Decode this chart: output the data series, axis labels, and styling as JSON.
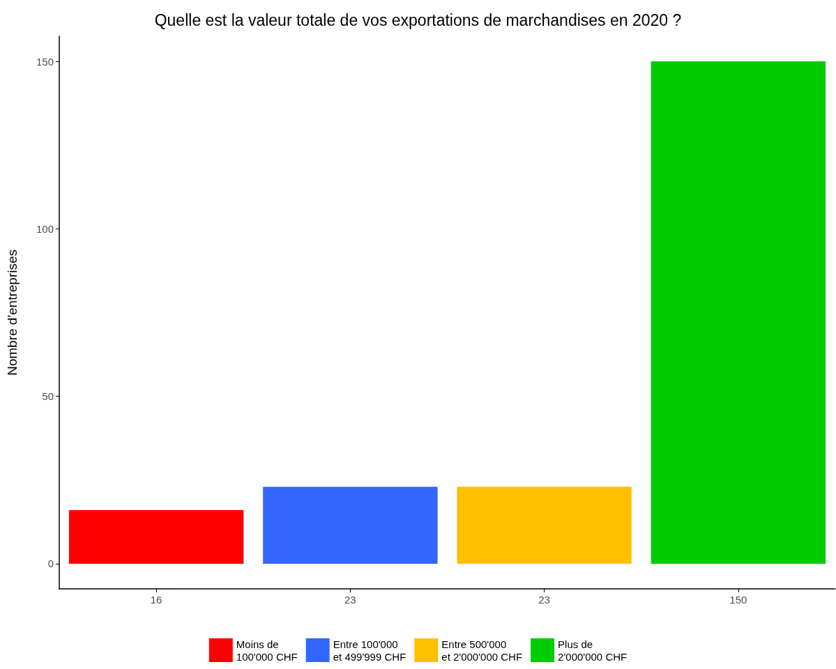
{
  "chart_data": {
    "type": "bar",
    "title": "Quelle est la valeur totale de vos exportations de marchandises en 2020 ?",
    "ylabel": "Nombre d'entreprises",
    "categories": [
      "16",
      "23",
      "23",
      "150"
    ],
    "series": [
      {
        "name": "Moins de\n100'000 CHF",
        "color": "#ff0000",
        "values": [
          16,
          null,
          null,
          null
        ]
      },
      {
        "name": "Entre 100'000\net 499'999 CHF",
        "color": "#3366ff",
        "values": [
          null,
          23,
          null,
          null
        ]
      },
      {
        "name": "Entre 500'000\net 2'000'000 CHF",
        "color": "#ffc000",
        "values": [
          null,
          null,
          23,
          null
        ]
      },
      {
        "name": "Plus de\n2'000'000 CHF",
        "color": "#00cc00",
        "values": [
          null,
          null,
          null,
          150
        ]
      }
    ],
    "ylim": [
      -7.5,
      157.5
    ],
    "yticks": [
      0,
      50,
      100,
      150
    ],
    "grid": false,
    "legend": "bottom"
  }
}
